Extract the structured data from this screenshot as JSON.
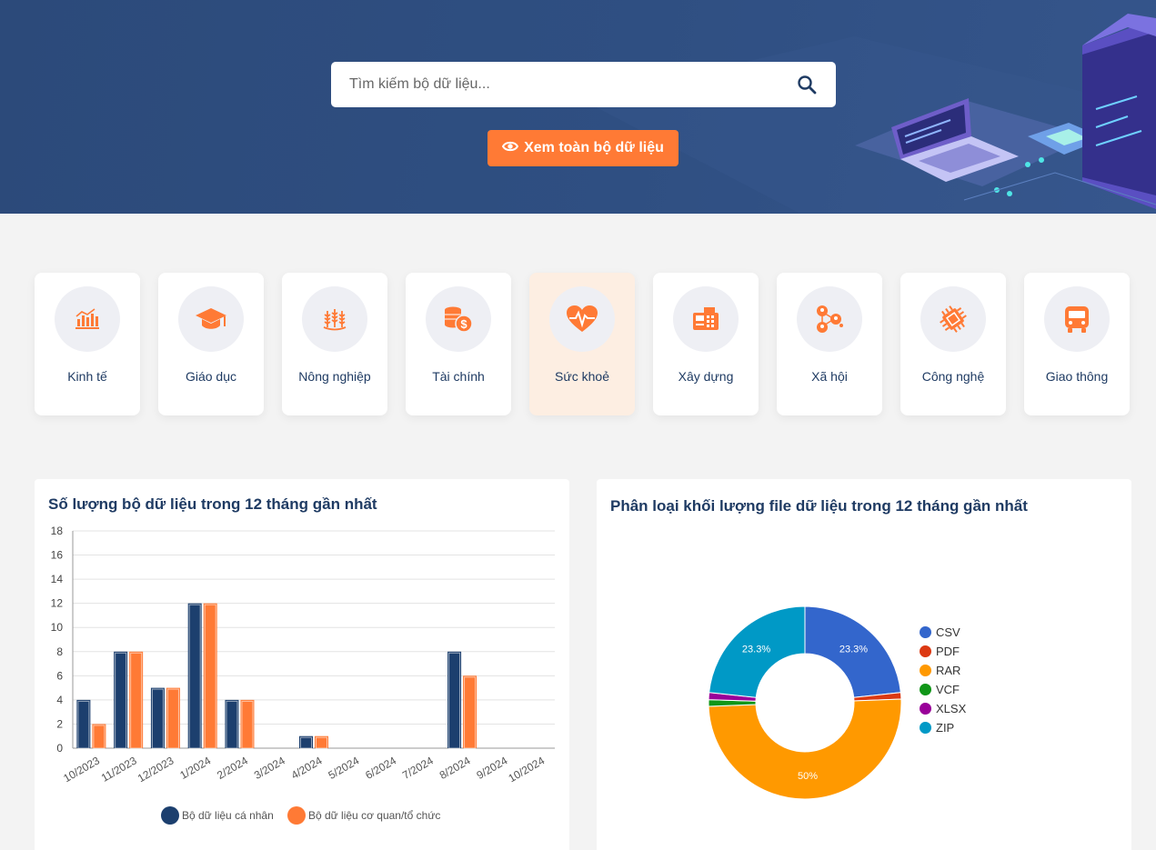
{
  "search": {
    "placeholder": "Tìm kiếm bộ dữ liệu..."
  },
  "hero": {
    "view_all_label": "Xem toàn bộ dữ liệu"
  },
  "categories": [
    {
      "label": "Kinh tế",
      "icon": "economy-chart-icon",
      "active": false
    },
    {
      "label": "Giáo dục",
      "icon": "graduation-cap-icon",
      "active": false
    },
    {
      "label": "Nông nghiệp",
      "icon": "wheat-icon",
      "active": false
    },
    {
      "label": "Tài chính",
      "icon": "coins-dollar-icon",
      "active": false
    },
    {
      "label": "Sức khoẻ",
      "icon": "heart-pulse-icon",
      "active": true
    },
    {
      "label": "Xây dựng",
      "icon": "cash-register-icon",
      "active": false
    },
    {
      "label": "Xã hội",
      "icon": "people-network-icon",
      "active": false
    },
    {
      "label": "Công nghệ",
      "icon": "circuit-chip-icon",
      "active": false
    },
    {
      "label": "Giao thông",
      "icon": "bus-icon",
      "active": false
    }
  ],
  "colors": {
    "accent": "#ff7a35",
    "navy": "#1c3f6e",
    "hero": "#2f4f82",
    "active_card": "#fdeee2"
  },
  "bar_panel": {
    "title": "Số lượng bộ dữ liệu trong 12 tháng gần nhất"
  },
  "pie_panel": {
    "title": "Phân loại khối lượng file dữ liệu trong 12 tháng gần nhất"
  },
  "chart_data": [
    {
      "type": "bar",
      "title": "Số lượng bộ dữ liệu trong 12 tháng gần nhất",
      "categories": [
        "10/2023",
        "11/2023",
        "12/2023",
        "1/2024",
        "2/2024",
        "3/2024",
        "4/2024",
        "5/2024",
        "6/2024",
        "7/2024",
        "8/2024",
        "9/2024",
        "10/2024"
      ],
      "series": [
        {
          "name": "Bộ dữ liệu cá nhân",
          "color": "#1c3f6e",
          "values": [
            4,
            8,
            5,
            12,
            4,
            0,
            1,
            0,
            0,
            0,
            8,
            0,
            0
          ]
        },
        {
          "name": "Bộ dữ liệu cơ quan/tổ chức",
          "color": "#ff7a35",
          "values": [
            2,
            8,
            5,
            12,
            4,
            0,
            1,
            0,
            0,
            0,
            6,
            0,
            0
          ]
        }
      ],
      "ylim": [
        0,
        18
      ],
      "yticks": [
        0,
        2,
        4,
        6,
        8,
        10,
        12,
        14,
        16,
        18
      ],
      "grid": true,
      "legend": "bottom"
    },
    {
      "type": "pie",
      "title": "Phân loại khối lượng file dữ liệu trong 12 tháng gần nhất",
      "donut": true,
      "slices": [
        {
          "label": "CSV",
          "value": 23.3,
          "color": "#3366cc",
          "shown": "23.3%"
        },
        {
          "label": "PDF",
          "value": 1.1,
          "color": "#dc3912",
          "shown": ""
        },
        {
          "label": "RAR",
          "value": 50,
          "color": "#ff9900",
          "shown": "50%"
        },
        {
          "label": "VCF",
          "value": 1.1,
          "color": "#109618",
          "shown": ""
        },
        {
          "label": "XLSX",
          "value": 1.2,
          "color": "#990099",
          "shown": ""
        },
        {
          "label": "ZIP",
          "value": 23.3,
          "color": "#0099c6",
          "shown": "23.3%"
        }
      ],
      "legend": "right"
    }
  ]
}
